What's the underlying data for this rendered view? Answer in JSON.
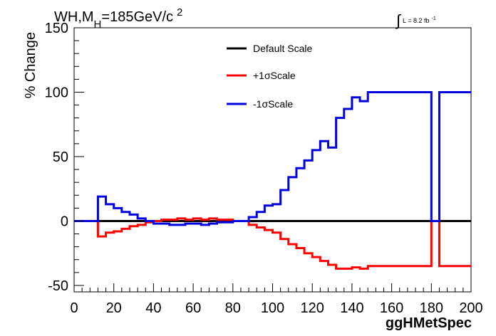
{
  "chart_data": {
    "type": "line",
    "title_parts": {
      "main": "WH,M",
      "sub": "H",
      "rest": "=185GeV/c",
      "sup": "2"
    },
    "lumi_parts": {
      "integral": "∫",
      "text": "L = 8.2 fb",
      "sup": "-1"
    },
    "xlabel": "ggHMetSpec",
    "ylabel": "% Change",
    "xlim": [
      0,
      200
    ],
    "ylim": [
      -55,
      150
    ],
    "xticks": [
      0,
      20,
      40,
      60,
      80,
      100,
      120,
      140,
      160,
      180,
      200
    ],
    "yticks": [
      -50,
      0,
      50,
      100,
      150
    ],
    "grid": false,
    "legend_position": "top-center",
    "series": [
      {
        "name": "Default Scale",
        "color": "#000000",
        "steps": [
          [
            0,
            200,
            0
          ]
        ]
      },
      {
        "name": "+1σScale",
        "color": "#ff0000",
        "steps": [
          [
            0,
            12,
            0
          ],
          [
            12,
            16,
            -12
          ],
          [
            16,
            20,
            -9
          ],
          [
            20,
            24,
            -8
          ],
          [
            24,
            28,
            -6
          ],
          [
            28,
            32,
            -4
          ],
          [
            32,
            36,
            -3
          ],
          [
            36,
            40,
            -1
          ],
          [
            40,
            44,
            0
          ],
          [
            44,
            48,
            1
          ],
          [
            48,
            52,
            1
          ],
          [
            52,
            56,
            2
          ],
          [
            56,
            60,
            1
          ],
          [
            60,
            64,
            2
          ],
          [
            64,
            68,
            1
          ],
          [
            68,
            72,
            2
          ],
          [
            72,
            76,
            1
          ],
          [
            76,
            80,
            1
          ],
          [
            80,
            84,
            0
          ],
          [
            84,
            88,
            0
          ],
          [
            88,
            92,
            -3
          ],
          [
            92,
            96,
            -5
          ],
          [
            96,
            100,
            -7
          ],
          [
            100,
            104,
            -9
          ],
          [
            104,
            108,
            -14
          ],
          [
            108,
            112,
            -18
          ],
          [
            112,
            116,
            -21
          ],
          [
            116,
            120,
            -25
          ],
          [
            120,
            124,
            -28
          ],
          [
            124,
            128,
            -31
          ],
          [
            128,
            132,
            -34
          ],
          [
            132,
            136,
            -37
          ],
          [
            136,
            140,
            -37
          ],
          [
            140,
            144,
            -36
          ],
          [
            144,
            148,
            -37
          ],
          [
            148,
            180,
            -35
          ],
          [
            180,
            184,
            0
          ],
          [
            184,
            200,
            -35
          ]
        ]
      },
      {
        "name": "-1σScale",
        "color": "#0000e0",
        "steps": [
          [
            0,
            12,
            0
          ],
          [
            12,
            16,
            19
          ],
          [
            16,
            20,
            13
          ],
          [
            20,
            24,
            10
          ],
          [
            24,
            28,
            7
          ],
          [
            28,
            32,
            5
          ],
          [
            32,
            36,
            2
          ],
          [
            36,
            40,
            0
          ],
          [
            40,
            44,
            -2
          ],
          [
            44,
            48,
            -2
          ],
          [
            48,
            52,
            -3
          ],
          [
            52,
            56,
            -3
          ],
          [
            56,
            60,
            -2
          ],
          [
            60,
            64,
            -2
          ],
          [
            64,
            68,
            -3
          ],
          [
            68,
            72,
            -2
          ],
          [
            72,
            76,
            -1
          ],
          [
            76,
            80,
            -1
          ],
          [
            80,
            84,
            0
          ],
          [
            84,
            88,
            0
          ],
          [
            88,
            92,
            3
          ],
          [
            92,
            96,
            7
          ],
          [
            96,
            100,
            12
          ],
          [
            100,
            104,
            13
          ],
          [
            104,
            108,
            24
          ],
          [
            108,
            112,
            34
          ],
          [
            112,
            116,
            41
          ],
          [
            116,
            120,
            47
          ],
          [
            120,
            124,
            55
          ],
          [
            124,
            128,
            62
          ],
          [
            128,
            132,
            57
          ],
          [
            132,
            136,
            80
          ],
          [
            136,
            140,
            87
          ],
          [
            140,
            144,
            96
          ],
          [
            144,
            148,
            93
          ],
          [
            148,
            180,
            100
          ],
          [
            180,
            184,
            0
          ],
          [
            184,
            200,
            100
          ]
        ]
      }
    ]
  }
}
